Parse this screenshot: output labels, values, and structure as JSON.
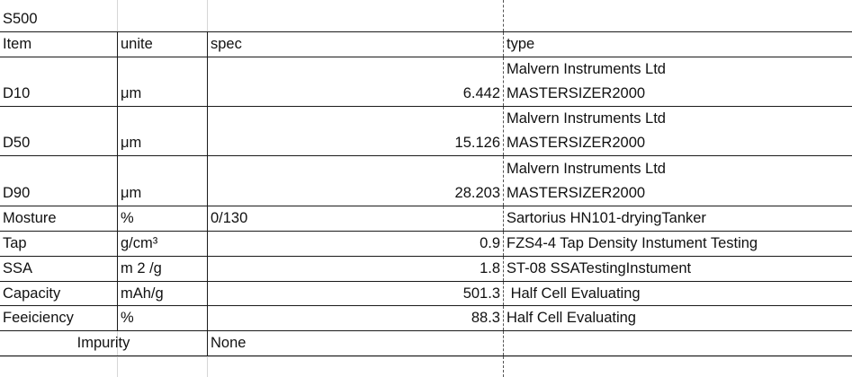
{
  "title": "S500",
  "header": {
    "item": "Item",
    "unite": "unite",
    "spec": "spec",
    "type": "type"
  },
  "rows": [
    {
      "item": "D10",
      "unite": "μm",
      "spec": "6.442",
      "type_line1": "Malvern Instruments Ltd",
      "type_line2": "MASTERSIZER2000"
    },
    {
      "item": "D50",
      "unite": "μm",
      "spec": "15.126",
      "type_line1": "Malvern Instruments Ltd",
      "type_line2": "MASTERSIZER2000"
    },
    {
      "item": "D90",
      "unite": "μm",
      "spec": "28.203",
      "type_line1": "Malvern Instruments Ltd",
      "type_line2": "MASTERSIZER2000"
    },
    {
      "item": "Mosture",
      "unite": "%",
      "spec": "0/130",
      "type": "Sartorius HN101-dryingTanker"
    },
    {
      "item": "Tap",
      "unite": "g/cm³",
      "spec": "0.9",
      "type": "FZS4-4 Tap Density Instument Testing"
    },
    {
      "item": "SSA",
      "unite": "m 2 /g",
      "spec": "1.8",
      "type": "ST-08 SSATestingInstument"
    },
    {
      "item": "Capacity",
      "unite": "mAh/g",
      "spec": "501.3",
      "type": " Half Cell Evaluating"
    },
    {
      "item": "Feeiciency",
      "unite": "%",
      "spec": "88.3",
      "type": "Half Cell Evaluating"
    },
    {
      "item": "Impurity",
      "spec": "None"
    }
  ]
}
